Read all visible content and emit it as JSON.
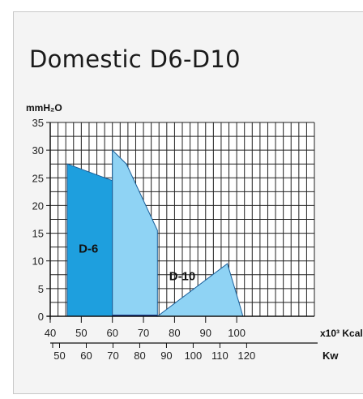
{
  "title": "Domestic D6-D10",
  "chart_data": {
    "type": "area",
    "title": "Domestic D6-D10",
    "ylabel": "mmH₂O",
    "ylim": [
      0,
      35
    ],
    "yticks": [
      0,
      5,
      10,
      15,
      20,
      25,
      30,
      35
    ],
    "x_primary": {
      "label": "x10³ Kcal",
      "lim": [
        40,
        125
      ],
      "ticks": [
        40,
        50,
        60,
        70,
        80,
        90,
        100
      ]
    },
    "x_secondary": {
      "label": "Kw",
      "ticks": [
        50,
        60,
        70,
        80,
        90,
        100,
        110,
        120
      ]
    },
    "grid": true,
    "series": [
      {
        "name": "D-6",
        "color": "#1e9fde",
        "x": [
          45.5,
          45.5,
          60,
          60
        ],
        "y": [
          0,
          27.5,
          24.5,
          0
        ]
      },
      {
        "name": "D-10",
        "color": "#8fd3f4",
        "x": [
          60,
          60,
          64.5,
          74.5,
          74.5,
          97,
          101,
          102,
          102
        ],
        "y": [
          0,
          30,
          27.5,
          15.5,
          0,
          9.5,
          2,
          0,
          0
        ]
      }
    ]
  }
}
